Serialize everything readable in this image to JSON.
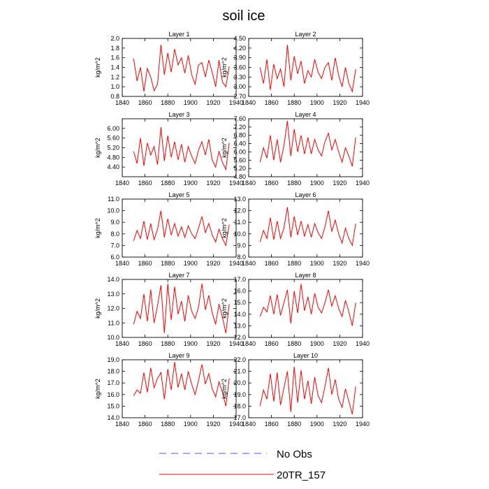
{
  "chart_data": {
    "type": "line",
    "title": "soil ice",
    "x_ticks": [
      1840,
      1860,
      1880,
      1900,
      1920,
      1940
    ],
    "xlim": [
      1840,
      1940
    ],
    "ylabel": "kg/m^2",
    "legend": {
      "placement": "bottom-center",
      "items": [
        {
          "label": "No Obs",
          "style": "dashed",
          "color": "#5050ff"
        },
        {
          "label": "20TR_157",
          "style": "solid",
          "color": "#ff0000"
        }
      ]
    },
    "series_color": "#ff0000",
    "panels": [
      {
        "title": "Layer 1",
        "ylim": [
          0.8,
          2.0
        ],
        "y_ticks": [
          "0.8",
          "1.0",
          "1.2",
          "1.4",
          "1.6",
          "1.8",
          "2.0"
        ],
        "x": [
          1850,
          1853,
          1856,
          1859,
          1862,
          1865,
          1868,
          1871,
          1874,
          1877,
          1880,
          1883,
          1886,
          1889,
          1892,
          1895,
          1898,
          1901,
          1904,
          1907,
          1910,
          1913,
          1916,
          1919,
          1922,
          1925,
          1928,
          1931,
          1934
        ],
        "values": [
          1.58,
          1.12,
          1.4,
          0.9,
          1.38,
          1.2,
          0.92,
          1.05,
          1.87,
          1.25,
          1.7,
          1.3,
          1.78,
          1.45,
          1.6,
          1.28,
          1.65,
          1.25,
          1.05,
          1.45,
          1.5,
          1.2,
          1.55,
          1.3,
          1.0,
          1.55,
          1.1,
          1.0,
          1.42
        ]
      },
      {
        "title": "Layer 2",
        "ylim": [
          2.7,
          4.5
        ],
        "y_ticks": [
          "2.70",
          "3.00",
          "3.30",
          "3.60",
          "3.90",
          "4.20",
          "4.50"
        ],
        "x": [
          1850,
          1853,
          1856,
          1859,
          1862,
          1865,
          1868,
          1871,
          1874,
          1877,
          1880,
          1883,
          1886,
          1889,
          1892,
          1895,
          1898,
          1901,
          1904,
          1907,
          1910,
          1913,
          1916,
          1919,
          1922,
          1925,
          1928,
          1931,
          1934
        ],
        "values": [
          3.6,
          3.1,
          3.85,
          2.9,
          3.7,
          3.25,
          3.55,
          3.0,
          4.3,
          3.2,
          3.95,
          3.4,
          3.8,
          3.1,
          3.5,
          3.3,
          3.85,
          3.45,
          3.25,
          3.6,
          3.75,
          3.2,
          3.9,
          3.35,
          3.0,
          3.6,
          3.1,
          2.85,
          3.55
        ]
      },
      {
        "title": "Layer 3",
        "ylim": [
          4.0,
          6.4
        ],
        "y_ticks": [
          "4.40",
          "4.80",
          "5.20",
          "5.60",
          "6.00"
        ],
        "x": [
          1850,
          1853,
          1856,
          1859,
          1862,
          1865,
          1868,
          1871,
          1874,
          1877,
          1880,
          1883,
          1886,
          1889,
          1892,
          1895,
          1898,
          1901,
          1904,
          1907,
          1910,
          1913,
          1916,
          1919,
          1922,
          1925,
          1928,
          1931,
          1934
        ],
        "values": [
          5.05,
          4.55,
          5.6,
          4.45,
          5.4,
          4.9,
          5.25,
          4.5,
          6.05,
          4.65,
          5.7,
          4.8,
          5.45,
          4.7,
          5.35,
          4.6,
          5.25,
          4.85,
          4.55,
          5.1,
          5.45,
          4.9,
          5.55,
          4.7,
          4.4,
          5.05,
          4.6,
          4.3,
          5.4
        ]
      },
      {
        "title": "Layer 4",
        "ylim": [
          4.8,
          7.6
        ],
        "y_ticks": [
          "4.80",
          "5.20",
          "5.60",
          "6.00",
          "6.40",
          "6.80",
          "7.20",
          "7.60"
        ],
        "x": [
          1850,
          1853,
          1856,
          1859,
          1862,
          1865,
          1868,
          1871,
          1874,
          1877,
          1880,
          1883,
          1886,
          1889,
          1892,
          1895,
          1898,
          1901,
          1904,
          1907,
          1910,
          1913,
          1916,
          1919,
          1922,
          1925,
          1928,
          1931,
          1934
        ],
        "values": [
          5.5,
          6.2,
          5.7,
          6.8,
          5.6,
          6.6,
          5.5,
          6.3,
          7.5,
          5.8,
          7.1,
          6.0,
          6.8,
          5.9,
          6.7,
          5.9,
          6.6,
          6.1,
          5.8,
          6.5,
          6.9,
          6.1,
          6.6,
          6.0,
          5.5,
          6.2,
          5.8,
          5.3,
          6.7
        ]
      },
      {
        "title": "Layer 5",
        "ylim": [
          6.0,
          11.0
        ],
        "y_ticks": [
          "6.0",
          "7.0",
          "8.0",
          "9.0",
          "10.0",
          "11.0"
        ],
        "x": [
          1850,
          1853,
          1856,
          1859,
          1862,
          1865,
          1868,
          1871,
          1874,
          1877,
          1880,
          1883,
          1886,
          1889,
          1892,
          1895,
          1898,
          1901,
          1904,
          1907,
          1910,
          1913,
          1916,
          1919,
          1922,
          1925,
          1928,
          1931,
          1934
        ],
        "values": [
          7.4,
          8.3,
          7.6,
          9.1,
          7.5,
          8.9,
          7.5,
          8.4,
          10.0,
          7.7,
          9.3,
          7.9,
          8.9,
          7.8,
          8.6,
          7.7,
          8.7,
          8.0,
          7.6,
          8.5,
          9.5,
          8.1,
          8.9,
          7.9,
          7.3,
          8.4,
          7.6,
          7.0,
          8.8
        ]
      },
      {
        "title": "Layer 6",
        "ylim": [
          8.0,
          13.0
        ],
        "y_ticks": [
          "8.0",
          "9.0",
          "10.0",
          "11.0",
          "12.0",
          "13.0"
        ],
        "x": [
          1850,
          1853,
          1856,
          1859,
          1862,
          1865,
          1868,
          1871,
          1874,
          1877,
          1880,
          1883,
          1886,
          1889,
          1892,
          1895,
          1898,
          1901,
          1904,
          1907,
          1910,
          1913,
          1916,
          1919,
          1922,
          1925,
          1928,
          1931,
          1934
        ],
        "values": [
          9.3,
          10.3,
          9.6,
          11.4,
          9.5,
          11.1,
          9.6,
          10.5,
          12.3,
          9.7,
          11.5,
          9.9,
          11.1,
          9.8,
          10.8,
          9.7,
          10.9,
          10.1,
          9.6,
          10.6,
          12.0,
          10.2,
          11.2,
          10.0,
          9.2,
          10.5,
          9.6,
          9.0,
          10.9
        ]
      },
      {
        "title": "Layer 7",
        "ylim": [
          10.0,
          14.0
        ],
        "y_ticks": [
          "10.0",
          "11.0",
          "12.0",
          "13.0",
          "14.0"
        ],
        "x": [
          1850,
          1853,
          1856,
          1859,
          1862,
          1865,
          1868,
          1871,
          1874,
          1877,
          1880,
          1883,
          1886,
          1889,
          1892,
          1895,
          1898,
          1901,
          1904,
          1907,
          1910,
          1913,
          1916,
          1919,
          1922,
          1925,
          1928,
          1931,
          1934
        ],
        "values": [
          10.9,
          11.8,
          11.3,
          13.0,
          11.1,
          13.3,
          11.0,
          12.2,
          13.6,
          10.3,
          13.7,
          11.2,
          13.5,
          11.6,
          12.5,
          11.1,
          12.9,
          11.8,
          11.3,
          12.1,
          13.7,
          11.9,
          12.9,
          11.7,
          10.9,
          12.3,
          11.4,
          10.3,
          12.3
        ]
      },
      {
        "title": "Layer 8",
        "ylim": [
          12.0,
          17.0
        ],
        "y_ticks": [
          "12.0",
          "13.0",
          "14.0",
          "15.0",
          "16.0",
          "17.0"
        ],
        "x": [
          1850,
          1853,
          1856,
          1859,
          1862,
          1865,
          1868,
          1871,
          1874,
          1877,
          1880,
          1883,
          1886,
          1889,
          1892,
          1895,
          1898,
          1901,
          1904,
          1907,
          1910,
          1913,
          1916,
          1919,
          1922,
          1925,
          1928,
          1931,
          1934
        ],
        "values": [
          13.8,
          14.6,
          14.2,
          15.6,
          14.0,
          15.7,
          13.9,
          15.0,
          16.1,
          13.2,
          16.0,
          14.1,
          16.6,
          14.3,
          15.5,
          14.0,
          15.8,
          14.6,
          14.1,
          15.0,
          16.1,
          14.7,
          15.6,
          14.5,
          13.8,
          15.2,
          14.2,
          13.0,
          15.0
        ]
      },
      {
        "title": "Layer 9",
        "ylim": [
          14.0,
          19.0
        ],
        "y_ticks": [
          "14.0",
          "15.0",
          "16.0",
          "17.0",
          "18.0",
          "19.0"
        ],
        "x": [
          1850,
          1853,
          1856,
          1859,
          1862,
          1865,
          1868,
          1871,
          1874,
          1877,
          1880,
          1883,
          1886,
          1889,
          1892,
          1895,
          1898,
          1901,
          1904,
          1907,
          1910,
          1913,
          1916,
          1919,
          1922,
          1925,
          1928,
          1931,
          1934
        ],
        "values": [
          15.9,
          16.4,
          16.1,
          17.9,
          16.2,
          18.3,
          16.6,
          17.4,
          17.9,
          15.6,
          18.2,
          16.4,
          18.8,
          16.6,
          17.8,
          16.4,
          18.0,
          16.9,
          16.0,
          17.2,
          18.6,
          16.9,
          17.8,
          16.5,
          15.8,
          17.1,
          16.2,
          15.0,
          17.4
        ]
      },
      {
        "title": "Layer 10",
        "ylim": [
          17.0,
          22.0
        ],
        "y_ticks": [
          "17.0",
          "18.0",
          "19.0",
          "20.0",
          "21.0",
          "22.0"
        ],
        "x": [
          1850,
          1853,
          1856,
          1859,
          1862,
          1865,
          1868,
          1871,
          1874,
          1877,
          1880,
          1883,
          1886,
          1889,
          1892,
          1895,
          1898,
          1901,
          1904,
          1907,
          1910,
          1913,
          1916,
          1919,
          1922,
          1925,
          1928,
          1931,
          1934
        ],
        "values": [
          18.0,
          19.4,
          18.6,
          20.8,
          18.4,
          20.9,
          18.1,
          19.6,
          21.0,
          17.5,
          21.4,
          18.3,
          21.1,
          18.6,
          20.2,
          18.2,
          20.5,
          18.9,
          18.3,
          19.7,
          21.3,
          19.0,
          20.3,
          18.6,
          17.9,
          19.5,
          18.4,
          17.3,
          19.7
        ]
      }
    ]
  }
}
